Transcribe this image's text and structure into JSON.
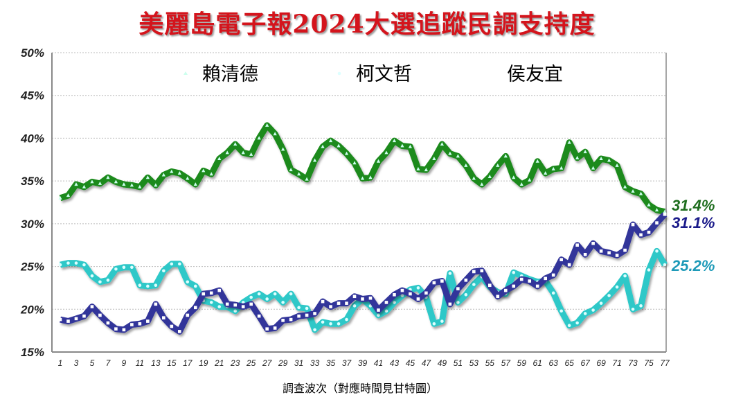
{
  "chart_data": {
    "type": "line",
    "title": "美麗島電子報2024大選追蹤民調支持度",
    "xlabel": "調查波次（對應時間見甘特圖）",
    "ylabel": "",
    "ylim": [
      15,
      50
    ],
    "yticks": [
      "15%",
      "20%",
      "25%",
      "30%",
      "35%",
      "40%",
      "45%",
      "50%"
    ],
    "xticks": [
      1,
      3,
      5,
      7,
      9,
      11,
      13,
      15,
      17,
      19,
      21,
      23,
      25,
      27,
      29,
      31,
      33,
      35,
      37,
      39,
      41,
      43,
      45,
      47,
      49,
      51,
      53,
      55,
      57,
      59,
      61,
      63,
      65,
      67,
      69,
      71,
      73,
      75,
      77
    ],
    "x_range": [
      1,
      77
    ],
    "grid": "horizontal dotted",
    "legend": "top",
    "series": [
      {
        "name": "賴清德",
        "color": "#1a8a1a",
        "marker": "triangle",
        "end_label": "31.4%",
        "end_label_color": "#1f6e1f",
        "values": [
          33.0,
          33.3,
          34.6,
          34.3,
          34.9,
          34.7,
          35.4,
          34.9,
          34.6,
          34.5,
          34.3,
          35.4,
          34.5,
          35.7,
          36.1,
          35.9,
          35.3,
          34.6,
          36.2,
          35.8,
          37.6,
          38.3,
          39.3,
          38.3,
          38.1,
          40.0,
          41.5,
          40.5,
          38.7,
          36.3,
          35.8,
          35.2,
          37.4,
          39.0,
          39.7,
          39.1,
          38.2,
          37.1,
          35.3,
          35.4,
          37.3,
          38.3,
          39.7,
          39.1,
          39.0,
          36.4,
          36.3,
          37.6,
          39.3,
          38.2,
          37.9,
          36.8,
          35.3,
          34.6,
          35.5,
          36.8,
          37.9,
          35.4,
          34.6,
          35.1,
          37.3,
          35.9,
          36.4,
          36.5,
          39.5,
          37.7,
          38.4,
          36.5,
          37.6,
          37.4,
          36.8,
          34.3,
          33.8,
          33.5,
          32.2,
          31.6,
          31.4
        ]
      },
      {
        "name": "柯文哲",
        "color": "#2ec8c8",
        "marker": "circle",
        "end_label": "25.2%",
        "end_label_color": "#1e9ab8",
        "values": [
          25.2,
          25.4,
          25.4,
          25.2,
          23.9,
          23.2,
          23.4,
          24.7,
          24.9,
          24.9,
          22.8,
          22.7,
          22.8,
          24.5,
          25.3,
          25.3,
          23.2,
          22.7,
          21.0,
          20.8,
          20.3,
          20.3,
          19.8,
          20.8,
          21.4,
          21.8,
          21.2,
          21.8,
          20.8,
          21.8,
          20.2,
          20.1,
          17.6,
          18.5,
          18.3,
          18.3,
          18.8,
          20.4,
          21.2,
          20.4,
          19.3,
          19.8,
          20.8,
          21.6,
          22.3,
          22.5,
          21.4,
          18.3,
          18.6,
          24.2,
          20.8,
          21.7,
          22.9,
          23.8,
          22.6,
          22.0,
          21.8,
          24.3,
          23.9,
          23.5,
          23.2,
          23.3,
          21.9,
          19.8,
          18.1,
          18.4,
          19.5,
          19.9,
          20.7,
          21.6,
          22.6,
          23.9,
          20.0,
          20.4,
          24.6,
          26.8,
          25.2
        ]
      },
      {
        "name": "侯友宜",
        "color": "#33349a",
        "marker": "square",
        "end_label": "31.1%",
        "end_label_color": "#1a1a8a",
        "values": [
          18.8,
          18.6,
          18.9,
          19.2,
          20.3,
          19.3,
          18.4,
          17.7,
          17.6,
          18.2,
          18.3,
          18.6,
          20.6,
          19.0,
          18.0,
          17.4,
          19.3,
          20.2,
          21.8,
          21.9,
          22.2,
          20.6,
          20.5,
          20.3,
          20.6,
          19.2,
          17.7,
          17.8,
          18.7,
          18.8,
          19.2,
          19.3,
          19.5,
          20.9,
          20.3,
          20.7,
          20.7,
          21.5,
          21.2,
          21.3,
          19.9,
          20.8,
          21.7,
          22.2,
          21.8,
          21.2,
          21.9,
          23.1,
          23.3,
          20.6,
          22.4,
          23.4,
          24.4,
          24.5,
          22.8,
          21.5,
          22.2,
          22.7,
          23.5,
          23.3,
          22.7,
          23.6,
          24.0,
          25.8,
          25.2,
          27.5,
          26.4,
          27.7,
          26.8,
          26.6,
          26.3,
          26.9,
          29.9,
          28.7,
          29.0,
          30.1,
          31.1
        ]
      }
    ]
  }
}
